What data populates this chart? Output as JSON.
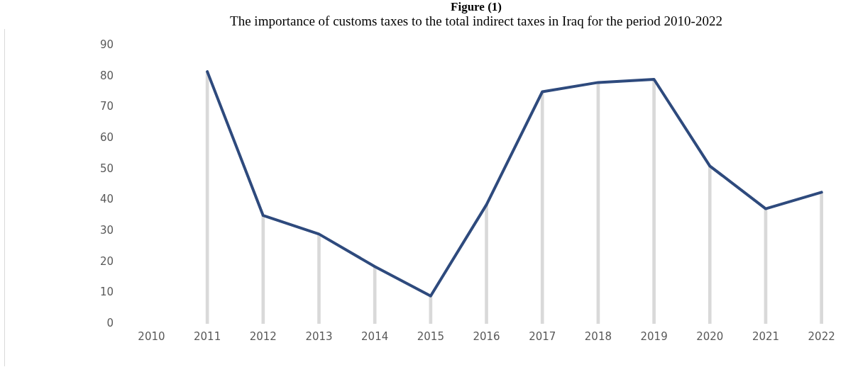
{
  "chart_data": {
    "type": "line",
    "title": "Figure (1)",
    "subtitle": "The importance of customs taxes to the total indirect taxes in Iraq for the period 2010-2022",
    "categories": [
      "2010",
      "2011",
      "2012",
      "2013",
      "2014",
      "2015",
      "2016",
      "2017",
      "2018",
      "2019",
      "2020",
      "2021",
      "2022"
    ],
    "series": [
      {
        "color": "#2e4a7d",
        "values": [
          null,
          81.5,
          35,
          29,
          18.5,
          9,
          38.5,
          75,
          78,
          79,
          51,
          37.2,
          42.5
        ]
      },
      {
        "type": "bar",
        "color": "#d9d9d9",
        "values": [
          null,
          81.5,
          35,
          29,
          18.5,
          9,
          38.5,
          75,
          78,
          79,
          51,
          37.2,
          42.5
        ]
      }
    ],
    "ylim": [
      0,
      90
    ],
    "yticks": [
      0,
      10,
      20,
      30,
      40,
      50,
      60,
      70,
      80,
      90
    ],
    "grid": false,
    "legend": false,
    "marker": "none",
    "line_style": "solid"
  }
}
